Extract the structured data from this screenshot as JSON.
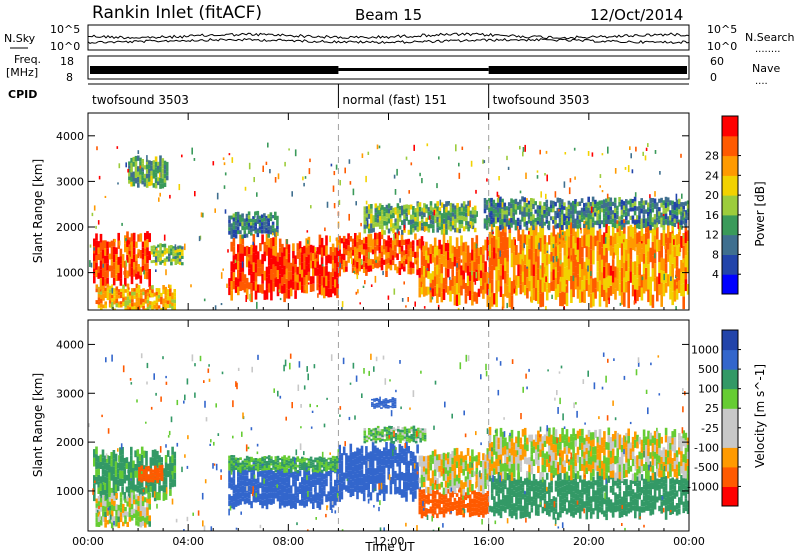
{
  "header": {
    "station": "Rankin Inlet (fitACF)",
    "beam": "Beam 15",
    "date": "12/Oct/2014"
  },
  "nsky_panel": {
    "left_label": "N.Sky",
    "right_label": "N.Search",
    "left_ticks": [
      "10^5",
      "10^0"
    ],
    "right_ticks": [
      "10^5",
      "10^0"
    ],
    "legend_marker": "........"
  },
  "freq_panel": {
    "left_label_1": "Freq.",
    "left_label_2": "[MHz]",
    "right_label": "Nave",
    "left_ticks": [
      "18",
      "8"
    ],
    "right_ticks": [
      "60",
      "0"
    ],
    "legend_marker": "...."
  },
  "cpid_panel": {
    "label": "CPID",
    "segments": [
      {
        "name": "twofsound",
        "id": "3503",
        "start_hour": 0,
        "end_hour": 10
      },
      {
        "name": "normal (fast)",
        "id": "151",
        "start_hour": 10,
        "end_hour": 16
      },
      {
        "name": "twofsound",
        "id": "3503",
        "start_hour": 16,
        "end_hour": 24
      }
    ]
  },
  "colors": {
    "power_scale": [
      "#0000ff",
      "#2244aa",
      "#3f6f8f",
      "#3a9a5a",
      "#9ccc3c",
      "#f2d200",
      "#ff9a00",
      "#ff5a00",
      "#ff0000"
    ],
    "velocity_scale": [
      "#ff0000",
      "#ff5a00",
      "#ff9a00",
      "#c8c8c8",
      "#c8c8c8",
      "#66cc33",
      "#339966",
      "#3366cc",
      "#2244aa"
    ],
    "dashed_line": "#a0a0a0"
  },
  "chart_data": [
    {
      "type": "heatmap",
      "title": "",
      "xlabel": "",
      "ylabel": "Slant Range [km]",
      "xlim": [
        0,
        24
      ],
      "ylim": [
        180,
        4500
      ],
      "x_ticks": [
        "00:00",
        "04:00",
        "08:00",
        "12:00",
        "16:00",
        "20:00",
        "00:00"
      ],
      "y_ticks": [
        "1000",
        "2000",
        "3000",
        "4000"
      ],
      "colorbar": {
        "label": "Power [dB]",
        "ticks": [
          "4",
          "8",
          "12",
          "16",
          "20",
          "24",
          "28"
        ],
        "range": [
          0,
          30
        ]
      },
      "bands": [
        {
          "hour_start": 0.2,
          "hour_end": 2.5,
          "range_low": 800,
          "range_high": 1800,
          "value": 26
        },
        {
          "hour_start": 2.5,
          "hour_end": 3.8,
          "range_low": 1200,
          "range_high": 1600,
          "value": 14
        },
        {
          "hour_start": 5.6,
          "hour_end": 10.0,
          "range_low": 500,
          "range_high": 1700,
          "value": 27
        },
        {
          "hour_start": 10.0,
          "hour_end": 13.2,
          "range_low": 1000,
          "range_high": 1800,
          "value": 25
        },
        {
          "hour_start": 13.2,
          "hour_end": 16.0,
          "range_low": 400,
          "range_high": 1700,
          "value": 23
        },
        {
          "hour_start": 16.0,
          "hour_end": 24.0,
          "range_low": 400,
          "range_high": 2000,
          "value": 22
        },
        {
          "hour_start": 0.3,
          "hour_end": 3.5,
          "range_low": 180,
          "range_high": 700,
          "value": 20
        },
        {
          "hour_start": 11.0,
          "hour_end": 15.5,
          "range_low": 1900,
          "range_high": 2500,
          "value": 13
        },
        {
          "hour_start": 15.8,
          "hour_end": 24.0,
          "range_low": 2000,
          "range_high": 2600,
          "value": 10
        },
        {
          "hour_start": 1.6,
          "hour_end": 3.2,
          "range_low": 2900,
          "range_high": 3500,
          "value": 12
        },
        {
          "hour_start": 5.6,
          "hour_end": 7.6,
          "range_low": 1800,
          "range_high": 2300,
          "value": 9
        }
      ]
    },
    {
      "type": "heatmap",
      "title": "",
      "xlabel": "Time UT",
      "ylabel": "Slant Range [km]",
      "xlim": [
        0,
        24
      ],
      "ylim": [
        180,
        4500
      ],
      "x_ticks": [
        "00:00",
        "04:00",
        "08:00",
        "12:00",
        "16:00",
        "20:00",
        "00:00"
      ],
      "y_ticks": [
        "1000",
        "2000",
        "3000",
        "4000"
      ],
      "colorbar": {
        "label": "Velocity [m s^-1]",
        "ticks": [
          "-1000",
          "-500",
          "-100",
          "-25",
          "25",
          "100",
          "500",
          "1000"
        ],
        "range": [
          -1000,
          1000
        ]
      },
      "bands": [
        {
          "hour_start": 0.2,
          "hour_end": 3.5,
          "range_low": 900,
          "range_high": 1800,
          "value": 150
        },
        {
          "hour_start": 0.3,
          "hour_end": 2.5,
          "range_low": 300,
          "range_high": 900,
          "value": 20
        },
        {
          "hour_start": 5.6,
          "hour_end": 10.0,
          "range_low": 700,
          "range_high": 1500,
          "value": 700
        },
        {
          "hour_start": 5.6,
          "hour_end": 10.0,
          "range_low": 1400,
          "range_high": 1700,
          "value": 120
        },
        {
          "hour_start": 10.0,
          "hour_end": 13.2,
          "range_low": 900,
          "range_high": 1900,
          "value": 800
        },
        {
          "hour_start": 13.2,
          "hour_end": 16.0,
          "range_low": 500,
          "range_high": 1000,
          "value": -200
        },
        {
          "hour_start": 13.2,
          "hour_end": 16.0,
          "range_low": 1000,
          "range_high": 1800,
          "value": 5
        },
        {
          "hour_start": 16.0,
          "hour_end": 24.0,
          "range_low": 500,
          "range_high": 1300,
          "value": 300
        },
        {
          "hour_start": 16.0,
          "hour_end": 24.0,
          "range_low": 1300,
          "range_high": 2200,
          "value": 0
        },
        {
          "hour_start": 11.0,
          "hour_end": 13.5,
          "range_low": 2000,
          "range_high": 2300,
          "value": 80
        },
        {
          "hour_start": 11.3,
          "hour_end": 12.3,
          "range_low": 2700,
          "range_high": 2900,
          "value": 900
        },
        {
          "hour_start": 2.0,
          "hour_end": 3.0,
          "range_low": 1200,
          "range_high": 1500,
          "value": -300
        }
      ]
    }
  ]
}
